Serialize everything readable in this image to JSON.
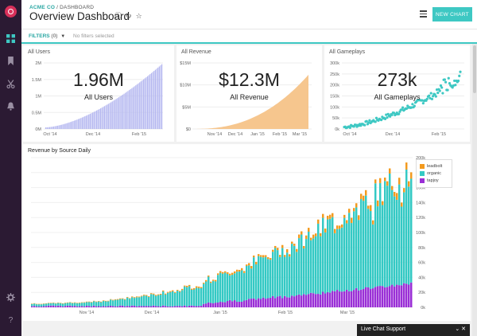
{
  "header": {
    "company": "ACME CO",
    "separator": "/",
    "section": "DASHBOARD",
    "title": "Overview Dashboard",
    "new_chart_label": "NEW CHART"
  },
  "filters": {
    "label": "FILTERS",
    "count": "(0)",
    "none_text": "No filters selected"
  },
  "sidebar": {
    "items": [
      {
        "icon": "dashboard-icon",
        "active": true
      },
      {
        "icon": "bookmark-icon",
        "active": false
      },
      {
        "icon": "scissors-icon",
        "active": false
      },
      {
        "icon": "bell-icon",
        "active": false
      },
      {
        "icon": "gear-icon",
        "active": false
      },
      {
        "icon": "help-icon",
        "active": false,
        "glyph": "?"
      }
    ]
  },
  "cards": {
    "users": {
      "title": "All Users",
      "big_value": "1.96M",
      "caption": "All Users",
      "y_ticks": [
        "2M",
        "1.5M",
        "1M",
        "0.5M",
        "0M"
      ],
      "x_ticks": [
        "Oct '14",
        "Dec '14",
        "Feb '15"
      ],
      "color": "#b4b7f0"
    },
    "revenue": {
      "title": "All Revenue",
      "big_value": "$12.3M",
      "caption": "All Revenue",
      "y_ticks": [
        "$15M",
        "$10M",
        "$5M",
        "$0"
      ],
      "x_ticks": [
        "Nov '14",
        "Dec '14",
        "Jan '15",
        "Feb '15",
        "Mar '15"
      ],
      "color": "#f6c68e"
    },
    "gameplays": {
      "title": "All Gameplays",
      "big_value": "273k",
      "caption": "All Gameplays",
      "y_ticks": [
        "300k",
        "250k",
        "200k",
        "150k",
        "100k",
        "50k",
        "0k"
      ],
      "x_ticks": [
        "Oct '14",
        "Dec '14",
        "Feb '15"
      ],
      "color": "#3ec8c3"
    }
  },
  "revenue_chart": {
    "title": "Revenue by Source Daily",
    "y_ticks": [
      "200k",
      "180k",
      "160k",
      "140k",
      "120k",
      "100k",
      "80k",
      "60k",
      "40k",
      "20k",
      "0k"
    ],
    "x_ticks": [
      "Nov '14",
      "Dec '14",
      "Jan '15",
      "Feb '15",
      "Mar '15"
    ],
    "legend": [
      {
        "name": "leadbolt",
        "color": "#f39a1e"
      },
      {
        "name": "organic",
        "color": "#34c9c4"
      },
      {
        "name": "tapjoy",
        "color": "#9a2fd6"
      }
    ]
  },
  "chart_data": [
    {
      "type": "bar",
      "title": "All Users",
      "ylim": [
        0,
        2000000
      ],
      "x_range": [
        "Oct '14",
        "Mar '15"
      ],
      "series": [
        {
          "name": "All Users",
          "values_start": 50000,
          "values_end": 1960000
        }
      ],
      "color": "#b4b7f0"
    },
    {
      "type": "area",
      "title": "All Revenue",
      "ylim": [
        0,
        15000000
      ],
      "x_range": [
        "Oct '14",
        "Mar '15"
      ],
      "series": [
        {
          "name": "All Revenue",
          "values_start": 0,
          "values_end": 12300000
        }
      ],
      "color": "#f6c68e"
    },
    {
      "type": "scatter",
      "title": "All Gameplays",
      "ylim": [
        0,
        300000
      ],
      "x_range": [
        "Oct '14",
        "Mar '15"
      ],
      "series": [
        {
          "name": "All Gameplays",
          "values_start": 10000,
          "values_end": 273000
        }
      ],
      "color": "#3ec8c3"
    },
    {
      "type": "bar",
      "title": "Revenue by Source Daily",
      "ylim": [
        0,
        200000
      ],
      "x_range": [
        "Oct '14",
        "Mar '15"
      ],
      "stacked": true,
      "series": [
        {
          "name": "tapjoy",
          "start": 1000,
          "end": 30000
        },
        {
          "name": "organic",
          "start": 2000,
          "end": 150000
        },
        {
          "name": "leadbolt",
          "start": 500,
          "end": 9000
        }
      ],
      "peak_total": 187000,
      "legend_position": "top-right"
    }
  ]
}
